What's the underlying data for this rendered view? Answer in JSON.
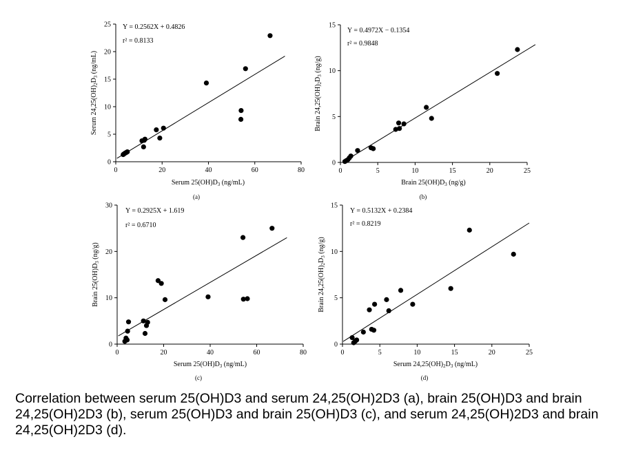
{
  "caption": "Correlation between serum 25(OH)D3 and serum 24,25(OH)2D3 (a), brain 25(OH)D3 and brain 24,25(OH)2D3 (b), serum 25(OH)D3 and brain 25(OH)D3 (c), and serum 24,25(OH)2D3 and brain 24,25(OH)2D3 (d).",
  "chart_data": [
    {
      "type": "scatter",
      "panel_label": "(a)",
      "xlabel_main": "Serum 25(OH)D",
      "xlabel_sub": "3",
      "xlabel_unit": " (ng/mL)",
      "ylabel_main": "Serum 24,25(OH)",
      "ylabel_sub1": "2",
      "ylabel_mid": "D",
      "ylabel_sub2": "3",
      "ylabel_unit": " (ng/mL)",
      "equation": "Y = 0.2562X + 0.4826",
      "r2": "r² = 0.8133",
      "xlim": [
        0,
        80
      ],
      "ylim": [
        0,
        25
      ],
      "xticks": [
        0,
        20,
        40,
        60,
        80
      ],
      "yticks": [
        0,
        5,
        10,
        15,
        20,
        25
      ],
      "fit": {
        "slope": 0.2562,
        "intercept": 0.4826,
        "x_start": 0.5,
        "x_end": 73
      },
      "points": [
        [
          3.2,
          1.3
        ],
        [
          3.5,
          1.4
        ],
        [
          3.8,
          1.5
        ],
        [
          4.2,
          1.6
        ],
        [
          4.6,
          1.7
        ],
        [
          5,
          1.8
        ],
        [
          11.3,
          3.8
        ],
        [
          12,
          2.7
        ],
        [
          12.3,
          3.9
        ],
        [
          12.6,
          4.1
        ],
        [
          17.5,
          5.8
        ],
        [
          19,
          4.3
        ],
        [
          20.6,
          6.1
        ],
        [
          39.1,
          14.3
        ],
        [
          54.1,
          9.3
        ],
        [
          54,
          7.7
        ],
        [
          56,
          16.9
        ],
        [
          66.6,
          22.9
        ]
      ]
    },
    {
      "type": "scatter",
      "panel_label": "(b)",
      "xlabel_main": "Brain 25(OH)D",
      "xlabel_sub": "3",
      "xlabel_unit": " (ng/g)",
      "ylabel_main": "Brain 24,25(OH)",
      "ylabel_sub1": "2",
      "ylabel_mid": "D",
      "ylabel_sub2": "3",
      "ylabel_unit": " (ng/g)",
      "equation": "Y = 0.4972X − 0.1354",
      "r2": "r² = 0.9848",
      "xlim": [
        0,
        25
      ],
      "ylim": [
        0,
        15
      ],
      "xticks": [
        0,
        5,
        10,
        15,
        20,
        25
      ],
      "yticks": [
        0,
        5,
        10,
        15
      ],
      "fit": {
        "slope": 0.4972,
        "intercept": -0.1354,
        "x_start": 0.5,
        "x_end": 26.1
      },
      "points": [
        [
          0.6,
          0.1
        ],
        [
          0.8,
          0.2
        ],
        [
          1,
          0.3
        ],
        [
          1.2,
          0.5
        ],
        [
          1.4,
          0.7
        ],
        [
          2.3,
          1.3
        ],
        [
          4.1,
          1.6
        ],
        [
          4.4,
          1.5
        ],
        [
          7.4,
          3.6
        ],
        [
          7.8,
          4.3
        ],
        [
          7.9,
          3.7
        ],
        [
          8.5,
          4.2
        ],
        [
          11.5,
          6
        ],
        [
          12.2,
          4.8
        ],
        [
          21,
          9.7
        ],
        [
          23.7,
          12.3
        ]
      ]
    },
    {
      "type": "scatter",
      "panel_label": "(c)",
      "xlabel_main": "Serum 25(OH)D",
      "xlabel_sub": "3",
      "xlabel_unit": " (ng/mL)",
      "ylabel_main": "Brain 25(OH)D",
      "ylabel_sub1": "",
      "ylabel_mid": "",
      "ylabel_sub2": "3",
      "ylabel_unit": " (ng/g)",
      "equation": "Y = 0.2925X + 1.619",
      "r2": "r² = 0.6710",
      "xlim": [
        0,
        80
      ],
      "ylim": [
        0,
        30
      ],
      "xticks": [
        0,
        20,
        40,
        60,
        80
      ],
      "yticks": [
        0,
        10,
        20,
        30
      ],
      "fit": {
        "slope": 0.2925,
        "intercept": 1.619,
        "x_start": 0.5,
        "x_end": 73
      },
      "points": [
        [
          3.3,
          0.6
        ],
        [
          3.8,
          1.3
        ],
        [
          4.3,
          0.9
        ],
        [
          4.5,
          2.8
        ],
        [
          4.9,
          4.8
        ],
        [
          11.3,
          5
        ],
        [
          12,
          2.3
        ],
        [
          12.6,
          4
        ],
        [
          13.1,
          4.7
        ],
        [
          17.6,
          13.7
        ],
        [
          19,
          13.1
        ],
        [
          20.6,
          9.6
        ],
        [
          39.1,
          10.2
        ],
        [
          54.3,
          9.7
        ],
        [
          56,
          9.8
        ],
        [
          54.1,
          23
        ],
        [
          66.6,
          25
        ]
      ]
    },
    {
      "type": "scatter",
      "panel_label": "(d)",
      "xlabel_main": "Serum 24,25(OH)",
      "xlabel_sub": "2",
      "xlabel_mid": "D",
      "xlabel_sub2": "3",
      "xlabel_unit": " (ng/mL)",
      "ylabel_main": "Brain 24,25(OH)",
      "ylabel_sub1": "2",
      "ylabel_mid": "D",
      "ylabel_sub2": "3",
      "ylabel_unit": " (ng/g)",
      "equation": "Y = 0.5132X + 0.2384",
      "r2": "r² = 0.8219",
      "xlim": [
        0,
        25
      ],
      "ylim": [
        0,
        15
      ],
      "xticks": [
        0,
        5,
        10,
        15,
        20,
        25
      ],
      "yticks": [
        0,
        5,
        10,
        15
      ],
      "fit": {
        "slope": 0.5132,
        "intercept": 0.2384,
        "x_start": 0.1,
        "x_end": 25
      },
      "points": [
        [
          1.3,
          0.7
        ],
        [
          1.5,
          0.15
        ],
        [
          1.7,
          0.3
        ],
        [
          1.9,
          0.45
        ],
        [
          2.8,
          1.3
        ],
        [
          3.6,
          3.7
        ],
        [
          3.9,
          1.6
        ],
        [
          4.2,
          1.5
        ],
        [
          4.3,
          4.3
        ],
        [
          5.9,
          4.8
        ],
        [
          6.2,
          3.6
        ],
        [
          7.8,
          5.8
        ],
        [
          9.4,
          4.3
        ],
        [
          14.5,
          6
        ],
        [
          17,
          12.3
        ],
        [
          22.9,
          9.7
        ]
      ]
    }
  ]
}
